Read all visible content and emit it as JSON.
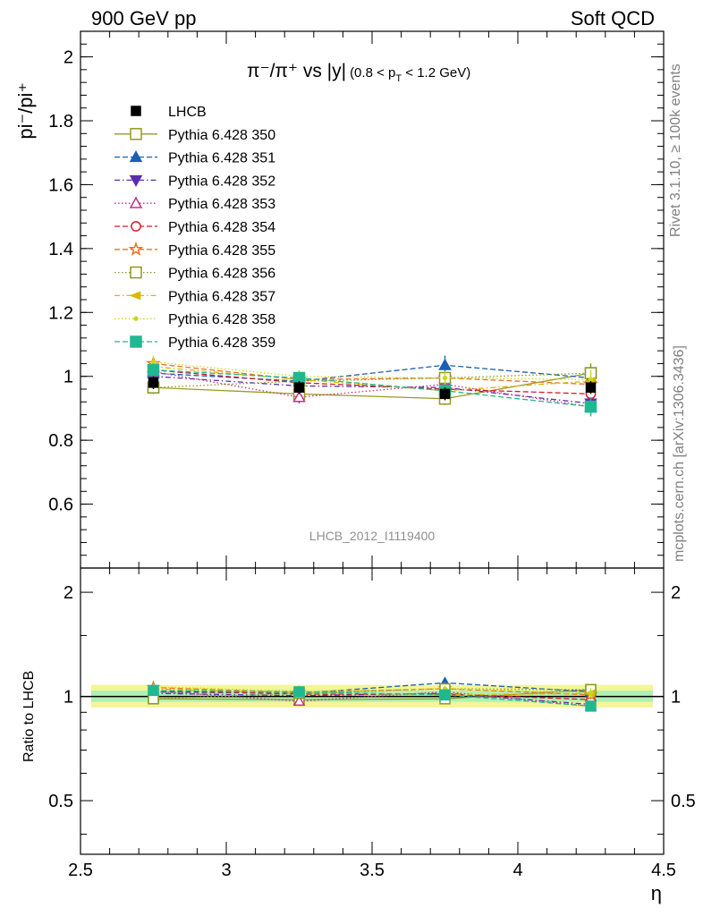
{
  "header": {
    "left": "900 GeV pp",
    "right": "Soft QCD"
  },
  "side_labels": {
    "rivet": "Rivet 3.1.10, ≥ 100k events",
    "mcplots": "mcplots.cern.ch [arXiv:1306.3436]"
  },
  "chart_data": {
    "type": "line",
    "title_main": "π⁻/π⁺ vs |y|",
    "title_sub_pre": "(0.8 < p",
    "title_sub_sub": "T",
    "title_sub_post": " < 1.2 GeV)",
    "ylabel": "pi⁻/pi⁺",
    "xlabel": "η",
    "ratio_ylabel": "Ratio to LHCB",
    "analysis_id": "LHCB_2012_I1119400",
    "xlim": [
      2.5,
      4.5
    ],
    "ylim": [
      0.4,
      2.08
    ],
    "ratio_ylim": [
      0.35,
      2.35
    ],
    "ratio_log": true,
    "x": [
      2.75,
      3.25,
      3.75,
      4.25
    ],
    "x_ticks": [
      "2.5",
      "3",
      "3.5",
      "4",
      "4.5"
    ],
    "y_ticks": [
      "0.6",
      "0.8",
      "1",
      "1.2",
      "1.4",
      "1.6",
      "1.8",
      "2"
    ],
    "ratio_ticks": [
      "0.5",
      "1",
      "2"
    ],
    "legend_position": "top-left",
    "data": {
      "name": "LHCB",
      "values": [
        0.98,
        0.965,
        0.945,
        0.965
      ],
      "errors": [
        0.02,
        0.02,
        0.02,
        0.02
      ]
    },
    "series": [
      {
        "name": "Pythia 6.428 350",
        "color": "#9a9a20",
        "marker": "square-open",
        "dash": "solid",
        "values": [
          0.965,
          0.945,
          0.93,
          1.01
        ],
        "errors": [
          0.02,
          0.02,
          0.02,
          0.03
        ]
      },
      {
        "name": "Pythia 6.428 351",
        "color": "#1a5fb4",
        "marker": "triangle-up",
        "dash": "6,3",
        "values": [
          1.01,
          0.985,
          1.035,
          0.995
        ],
        "errors": [
          0.02,
          0.02,
          0.03,
          0.03
        ]
      },
      {
        "name": "Pythia 6.428 352",
        "color": "#5a2db0",
        "marker": "triangle-down",
        "dash": "6,3,1.5,3",
        "values": [
          1.0,
          0.97,
          0.965,
          0.915
        ],
        "errors": [
          0.02,
          0.02,
          0.02,
          0.03
        ]
      },
      {
        "name": "Pythia 6.428 353",
        "color": "#c0308a",
        "marker": "triangle-open",
        "dash": "1.5,2.5",
        "values": [
          1.015,
          0.935,
          0.975,
          0.905
        ],
        "errors": [
          0.02,
          0.02,
          0.02,
          0.03
        ]
      },
      {
        "name": "Pythia 6.428 354",
        "color": "#d01c2c",
        "marker": "circle-open",
        "dash": "6,3",
        "values": [
          1.02,
          0.98,
          0.96,
          0.945
        ],
        "errors": [
          0.02,
          0.02,
          0.02,
          0.03
        ]
      },
      {
        "name": "Pythia 6.428 355",
        "color": "#f07020",
        "marker": "star-open",
        "dash": "6,3",
        "values": [
          1.04,
          0.99,
          0.995,
          0.975
        ],
        "errors": [
          0.02,
          0.02,
          0.02,
          0.03
        ]
      },
      {
        "name": "Pythia 6.428 356",
        "color": "#8a9a20",
        "marker": "square-open",
        "dash": "1.5,2.5",
        "values": [
          0.965,
          0.985,
          0.995,
          1.01
        ],
        "errors": [
          0.02,
          0.02,
          0.02,
          0.03
        ]
      },
      {
        "name": "Pythia 6.428 357",
        "color": "#d8b800",
        "marker": "triangle-left",
        "dash": "6,3,1.5,3",
        "values": [
          1.03,
          0.99,
          0.955,
          0.985
        ],
        "errors": [
          0.02,
          0.02,
          0.02,
          0.03
        ]
      },
      {
        "name": "Pythia 6.428 358",
        "color": "#c8d820",
        "marker": "dot",
        "dash": "1.5,2.5",
        "values": [
          1.045,
          1.0,
          0.995,
          0.99
        ],
        "errors": [
          0.02,
          0.02,
          0.02,
          0.03
        ]
      },
      {
        "name": "Pythia 6.428 359",
        "color": "#20b890",
        "marker": "square-filled",
        "dash": "6,3",
        "values": [
          1.02,
          0.995,
          0.955,
          0.905
        ],
        "errors": [
          0.02,
          0.02,
          0.02,
          0.03
        ]
      }
    ]
  }
}
